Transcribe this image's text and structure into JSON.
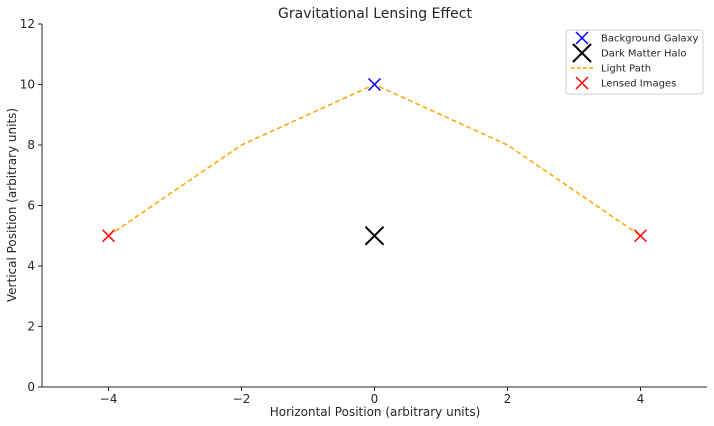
{
  "chart_data": {
    "type": "scatter",
    "title": "Gravitational Lensing Effect",
    "xlabel": "Horizontal Position (arbitrary units)",
    "ylabel": "Vertical Position (arbitrary units)",
    "xlim": [
      -5,
      5
    ],
    "ylim": [
      0,
      12
    ],
    "x_ticks": [
      -4,
      -2,
      0,
      2,
      4
    ],
    "x_tick_labels": [
      "−4",
      "−2",
      "0",
      "2",
      "4"
    ],
    "y_ticks": [
      0,
      2,
      4,
      6,
      8,
      10,
      12
    ],
    "y_tick_labels": [
      "0",
      "2",
      "4",
      "6",
      "8",
      "10",
      "12"
    ],
    "grid": false,
    "legend_position": "top-right",
    "series": [
      {
        "name": "Background Galaxy",
        "kind": "marker",
        "marker": "x",
        "color": "#0000ff",
        "x": [
          0
        ],
        "y": [
          10
        ]
      },
      {
        "name": "Dark Matter Halo",
        "kind": "marker",
        "marker": "x-large",
        "color": "#000000",
        "x": [
          0
        ],
        "y": [
          5
        ]
      },
      {
        "name": "Light Path",
        "kind": "line",
        "style": "dashed",
        "color": "#ffa500",
        "x": [
          -4,
          -2,
          0,
          2,
          4
        ],
        "y": [
          5,
          8,
          10,
          8,
          5
        ]
      },
      {
        "name": "Lensed Images",
        "kind": "marker",
        "marker": "x",
        "color": "#ff0000",
        "x": [
          -4,
          4
        ],
        "y": [
          5,
          5
        ]
      }
    ]
  }
}
